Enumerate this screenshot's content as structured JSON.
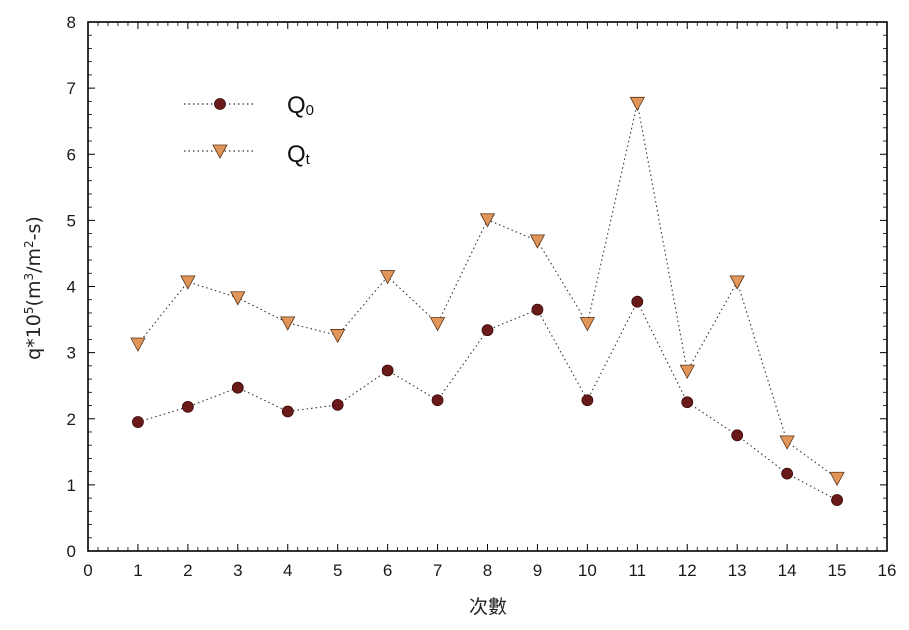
{
  "chart_data": {
    "type": "line",
    "xlabel": "次數",
    "ylabel_base": "q*10",
    "ylabel_exp": "5",
    "ylabel_unit_a": "(m",
    "ylabel_unit_a_exp": "3",
    "ylabel_unit_b": "/m",
    "ylabel_unit_b_exp": "2",
    "ylabel_unit_c": "-s)",
    "xlim": [
      0,
      16
    ],
    "ylim": [
      0,
      8
    ],
    "xticks": [
      "0",
      "1",
      "2",
      "3",
      "4",
      "5",
      "6",
      "7",
      "8",
      "9",
      "10",
      "11",
      "12",
      "13",
      "14",
      "15",
      "16"
    ],
    "yticks": [
      "0",
      "1",
      "2",
      "3",
      "4",
      "5",
      "6",
      "7",
      "8"
    ],
    "grid": false,
    "legend_position": "top-left",
    "x": [
      1,
      2,
      3,
      4,
      5,
      6,
      7,
      8,
      9,
      10,
      11,
      12,
      13,
      14,
      15
    ],
    "series": [
      {
        "name": "Q0",
        "label_main": "Q",
        "label_sub": "0",
        "marker": "circle",
        "color": "#6b1a1a",
        "values": [
          1.95,
          2.18,
          2.47,
          2.11,
          2.21,
          2.73,
          2.28,
          3.34,
          3.65,
          2.28,
          3.77,
          2.25,
          1.75,
          1.17,
          0.77
        ]
      },
      {
        "name": "Qt",
        "label_main": "Q",
        "label_sub": "t",
        "marker": "triangle-down",
        "color": "#e0965a",
        "values": [
          3.13,
          4.07,
          3.83,
          3.45,
          3.26,
          4.15,
          3.44,
          5.01,
          4.69,
          3.44,
          6.77,
          2.72,
          4.07,
          1.65,
          1.1
        ]
      }
    ]
  }
}
